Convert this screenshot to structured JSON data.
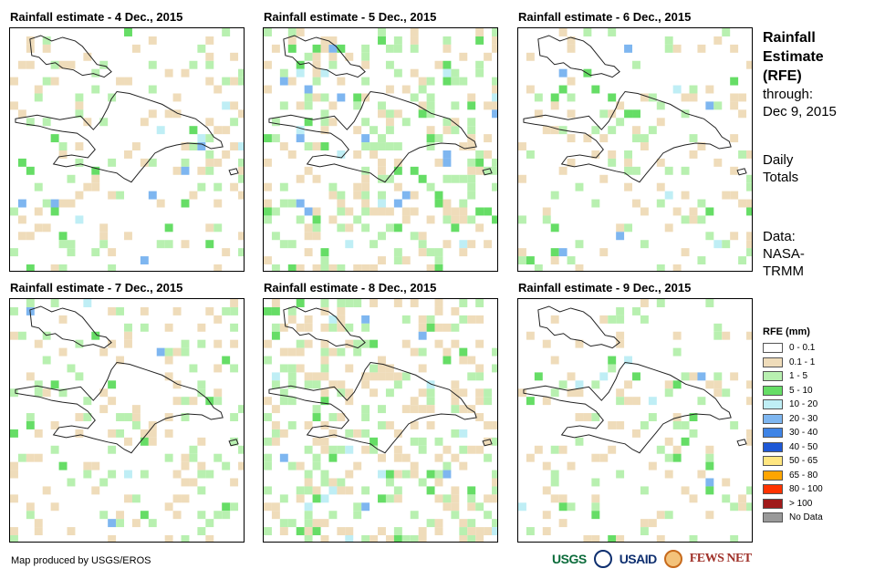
{
  "panels": [
    {
      "title": "Rainfall estimate - 4 Dec., 2015"
    },
    {
      "title": "Rainfall estimate - 5 Dec., 2015"
    },
    {
      "title": "Rainfall estimate - 6 Dec., 2015"
    },
    {
      "title": "Rainfall estimate - 7 Dec., 2015"
    },
    {
      "title": "Rainfall estimate - 8 Dec., 2015"
    },
    {
      "title": "Rainfall estimate - 9 Dec., 2015"
    }
  ],
  "side": {
    "title_1": "Rainfall",
    "title_2": "Estimate",
    "title_3": "(RFE)",
    "through_label": "through:",
    "through_date": "Dec 9, 2015",
    "totals_1": "Daily",
    "totals_2": "Totals",
    "data_1": "Data:",
    "data_2": "NASA-",
    "data_3": "TRMM"
  },
  "legend": {
    "title": "RFE (mm)",
    "items": [
      {
        "label": "0 - 0.1",
        "color": "#ffffff"
      },
      {
        "label": "0.1 - 1",
        "color": "#efdcba"
      },
      {
        "label": "1 - 5",
        "color": "#b8f0b0"
      },
      {
        "label": "5 - 10",
        "color": "#66dd66"
      },
      {
        "label": "10 - 20",
        "color": "#bfeef5"
      },
      {
        "label": "20 - 30",
        "color": "#7eb6f0"
      },
      {
        "label": "30 - 40",
        "color": "#3f84e6"
      },
      {
        "label": "40 - 50",
        "color": "#1e58d6"
      },
      {
        "label": "50 - 65",
        "color": "#ffe680"
      },
      {
        "label": "65 - 80",
        "color": "#ffa500"
      },
      {
        "label": "80 - 100",
        "color": "#ff3300"
      },
      {
        "label": "> 100",
        "color": "#a01a1a"
      },
      {
        "label": "No Data",
        "color": "#999999"
      }
    ]
  },
  "credit": "Map produced by USGS/EROS",
  "logos": {
    "usgs": "USGS",
    "usaid": "USAID",
    "fews": "FEWS NET"
  }
}
